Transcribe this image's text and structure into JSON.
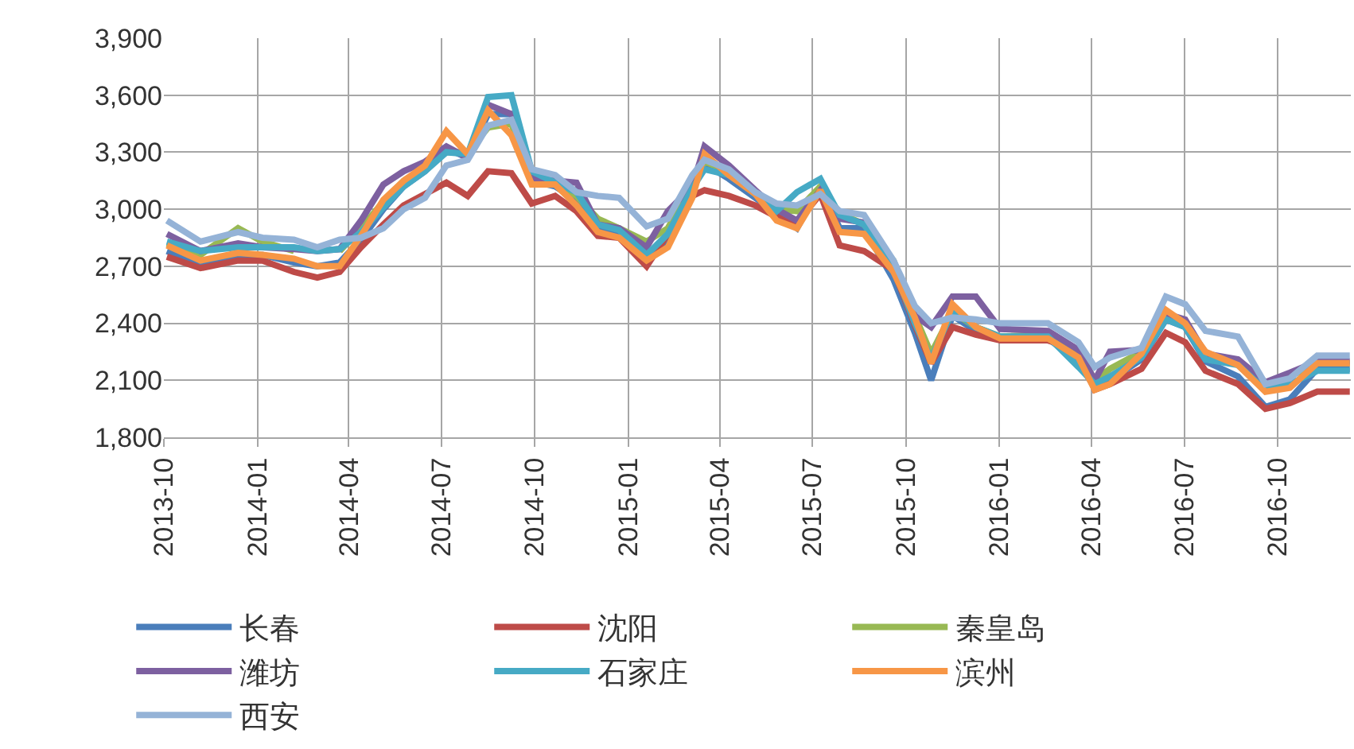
{
  "chart_data": {
    "type": "line",
    "x": [
      "2013-10-04",
      "2013-11-06",
      "2013-12-13",
      "2014-01-06",
      "2014-02-06",
      "2014-03-01",
      "2014-03-23",
      "2014-04-13",
      "2014-05-05",
      "2014-05-25",
      "2014-06-15",
      "2014-07-06",
      "2014-07-27",
      "2014-08-16",
      "2014-09-08",
      "2014-09-28",
      "2014-10-21",
      "2014-11-11",
      "2014-12-02",
      "2014-12-23",
      "2015-01-19",
      "2015-02-09",
      "2015-03-05",
      "2015-03-17",
      "2015-04-10",
      "2015-05-06",
      "2015-05-27",
      "2015-06-16",
      "2015-07-09",
      "2015-07-28",
      "2015-08-21",
      "2015-09-19",
      "2015-10-10",
      "2015-10-26",
      "2015-11-16",
      "2015-12-09",
      "2016-01-02",
      "2016-02-18",
      "2016-03-19",
      "2016-04-04",
      "2016-04-19",
      "2016-05-20",
      "2016-06-13",
      "2016-07-02",
      "2016-07-22",
      "2016-08-23",
      "2016-09-19",
      "2016-10-13",
      "2016-11-09",
      "2016-12-11"
    ],
    "series": [
      {
        "name": "长春",
        "color": "#4a7ebb",
        "values": [
          2780,
          2710,
          2760,
          2760,
          2720,
          2700,
          2720,
          2840,
          3000,
          3120,
          3200,
          3320,
          3270,
          3500,
          3500,
          3150,
          3120,
          3050,
          2900,
          2880,
          2720,
          2830,
          3100,
          3240,
          3160,
          3060,
          2980,
          2900,
          3120,
          2900,
          2900,
          2630,
          2350,
          2100,
          2440,
          2360,
          2320,
          2320,
          2200,
          2060,
          2100,
          2210,
          2420,
          2380,
          2200,
          2120,
          1960,
          2000,
          2160,
          2160
        ]
      },
      {
        "name": "沈阳",
        "color": "#be4b48",
        "values": [
          2750,
          2690,
          2730,
          2730,
          2670,
          2640,
          2670,
          2800,
          2920,
          3020,
          3080,
          3140,
          3070,
          3200,
          3190,
          3030,
          3070,
          2990,
          2860,
          2850,
          2700,
          2870,
          3070,
          3100,
          3070,
          3020,
          2960,
          2930,
          3080,
          2810,
          2780,
          2680,
          2390,
          2190,
          2380,
          2340,
          2310,
          2310,
          2260,
          2050,
          2080,
          2160,
          2350,
          2300,
          2150,
          2080,
          1950,
          1980,
          2040,
          2040
        ]
      },
      {
        "name": "秦皇岛",
        "color": "#98b954",
        "values": [
          2820,
          2760,
          2900,
          2830,
          2780,
          null,
          2780,
          2900,
          3040,
          3150,
          3220,
          3300,
          3300,
          3430,
          3450,
          3150,
          3130,
          3070,
          2950,
          2900,
          2830,
          2900,
          3130,
          3250,
          3200,
          3080,
          3000,
          2990,
          3120,
          2980,
          2920,
          2730,
          2440,
          2240,
          2460,
          2380,
          2330,
          2340,
          2250,
          2100,
          2160,
          2250,
          2440,
          2400,
          2240,
          2200,
          2060,
          2120,
          2190,
          2190
        ]
      },
      {
        "name": "潍坊",
        "color": "#7d60a0",
        "values": [
          2870,
          2780,
          2820,
          2800,
          2790,
          2780,
          2790,
          2940,
          3130,
          3200,
          3250,
          3330,
          3270,
          3550,
          3500,
          3160,
          3150,
          3140,
          2920,
          2900,
          2800,
          2990,
          3120,
          3330,
          3230,
          3100,
          3000,
          2940,
          3100,
          2950,
          2930,
          2700,
          2440,
          2380,
          2540,
          2540,
          2370,
          2360,
          2260,
          2100,
          2250,
          2260,
          2450,
          2420,
          2240,
          2210,
          2090,
          2140,
          2200,
          2200
        ]
      },
      {
        "name": "石家庄",
        "color": "#46aac5",
        "values": [
          2830,
          2780,
          2800,
          2800,
          2800,
          2780,
          2790,
          2880,
          3010,
          3120,
          3200,
          3300,
          3290,
          3590,
          3600,
          3200,
          3140,
          3090,
          2920,
          2890,
          2760,
          2870,
          3110,
          3210,
          3180,
          3080,
          2990,
          3090,
          3160,
          2970,
          2920,
          2690,
          2400,
          2210,
          2470,
          2380,
          2330,
          2330,
          2170,
          2080,
          2120,
          2220,
          2420,
          2380,
          2210,
          2180,
          2050,
          2080,
          2150,
          2150
        ]
      },
      {
        "name": "滨州",
        "color": "#f79646",
        "values": [
          2810,
          2730,
          2770,
          2760,
          2740,
          2700,
          2700,
          2860,
          3050,
          3150,
          3230,
          3410,
          3290,
          3520,
          3390,
          3130,
          3130,
          3020,
          2880,
          2850,
          2730,
          2800,
          3060,
          3290,
          3180,
          3080,
          2940,
          2900,
          3100,
          2880,
          2870,
          2670,
          2430,
          2190,
          2500,
          2380,
          2320,
          2320,
          2220,
          2050,
          2080,
          2240,
          2470,
          2400,
          2250,
          2180,
          2040,
          2060,
          2190,
          2190
        ]
      },
      {
        "name": "西安",
        "color": "#95b3d7",
        "values": [
          2940,
          2830,
          2880,
          2850,
          2840,
          2800,
          2840,
          2850,
          2900,
          3000,
          3060,
          3230,
          3260,
          3440,
          3470,
          3210,
          3180,
          3090,
          3070,
          3060,
          2910,
          2950,
          3180,
          3260,
          3210,
          3090,
          3030,
          3020,
          3080,
          2990,
          2970,
          2730,
          2490,
          2400,
          2430,
          2420,
          2400,
          2400,
          2300,
          2170,
          2220,
          2270,
          2540,
          2500,
          2360,
          2330,
          2080,
          2110,
          2230,
          2230
        ]
      }
    ],
    "xlim": [
      "2013-10-01",
      "2016-12-12"
    ],
    "xticks": [
      {
        "value": "2013-10-01",
        "label": "2013-10"
      },
      {
        "value": "2014-01-01",
        "label": "2014-01"
      },
      {
        "value": "2014-04-01",
        "label": "2014-04"
      },
      {
        "value": "2014-07-01",
        "label": "2014-07"
      },
      {
        "value": "2014-10-01",
        "label": "2014-10"
      },
      {
        "value": "2015-01-01",
        "label": "2015-01"
      },
      {
        "value": "2015-04-01",
        "label": "2015-04"
      },
      {
        "value": "2015-07-01",
        "label": "2015-07"
      },
      {
        "value": "2015-10-01",
        "label": "2015-10"
      },
      {
        "value": "2016-01-01",
        "label": "2016-01"
      },
      {
        "value": "2016-04-01",
        "label": "2016-04"
      },
      {
        "value": "2016-07-01",
        "label": "2016-07"
      },
      {
        "value": "2016-10-01",
        "label": "2016-10"
      }
    ],
    "ylim": [
      1800,
      3900
    ],
    "yticks": [
      {
        "value": 1800,
        "label": "1,800"
      },
      {
        "value": 2100,
        "label": "2,100"
      },
      {
        "value": 2400,
        "label": "2,400"
      },
      {
        "value": 2700,
        "label": "2,700"
      },
      {
        "value": 3000,
        "label": "3,000"
      },
      {
        "value": 3300,
        "label": "3,300"
      },
      {
        "value": 3600,
        "label": "3,600"
      },
      {
        "value": 3900,
        "label": "3,900"
      }
    ],
    "grid": true,
    "legend": "bottom",
    "marker": "none",
    "line_style": "solid"
  }
}
